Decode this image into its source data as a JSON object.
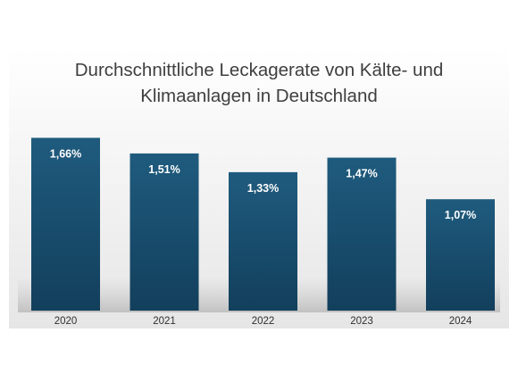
{
  "chart_data": {
    "type": "bar",
    "title_lines": [
      "Durchschnittliche Leckagerate von Kälte- und",
      "Klimaanlagen in Deutschland"
    ],
    "categories": [
      "2020",
      "2021",
      "2022",
      "2023",
      "2024"
    ],
    "values": [
      1.66,
      1.51,
      1.33,
      1.47,
      1.07
    ],
    "data_labels": [
      "1,66%",
      "1,51%",
      "1,33%",
      "1,47%",
      "1,07%"
    ],
    "xlabel": "",
    "ylabel": "",
    "ylim": [
      0,
      2
    ],
    "grid": false,
    "legend": "none",
    "colors": {
      "bar_top": "#1f5b7e",
      "bar_bottom": "#123f5c",
      "background_top": "#ffffff",
      "background_bottom": "#e5e5e5",
      "title": "#3f3f3f",
      "axis_text": "#2f2f2f",
      "data_label": "#ffffff"
    }
  }
}
